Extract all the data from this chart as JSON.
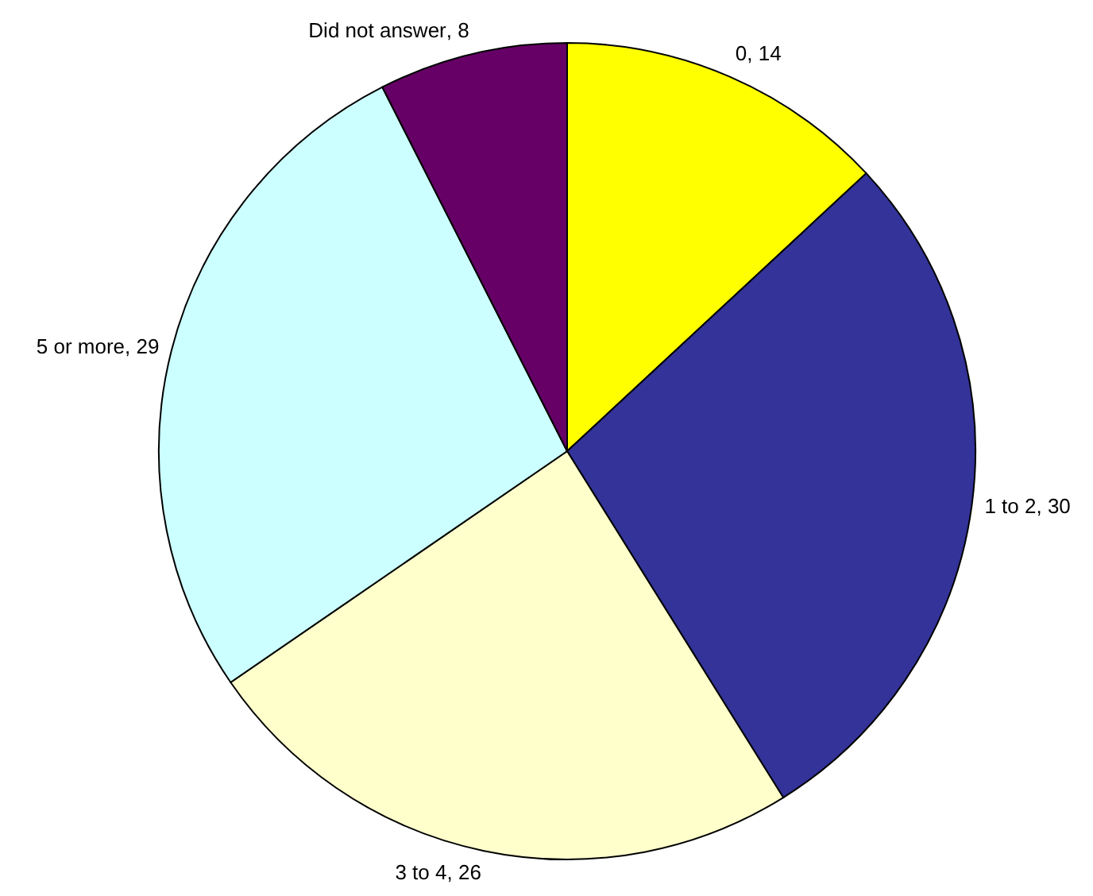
{
  "chart_data": {
    "type": "pie",
    "categories": [
      "0",
      "1 to 2",
      "3 to 4",
      "5 or more",
      "Did not answer"
    ],
    "values": [
      14,
      30,
      26,
      29,
      8
    ],
    "colors": [
      "#ffff00",
      "#333399",
      "#ffffcc",
      "#ccffff",
      "#660066"
    ],
    "value_labels": [
      ", 14",
      ", 30",
      ", 26",
      ", 29",
      ", 8"
    ]
  }
}
